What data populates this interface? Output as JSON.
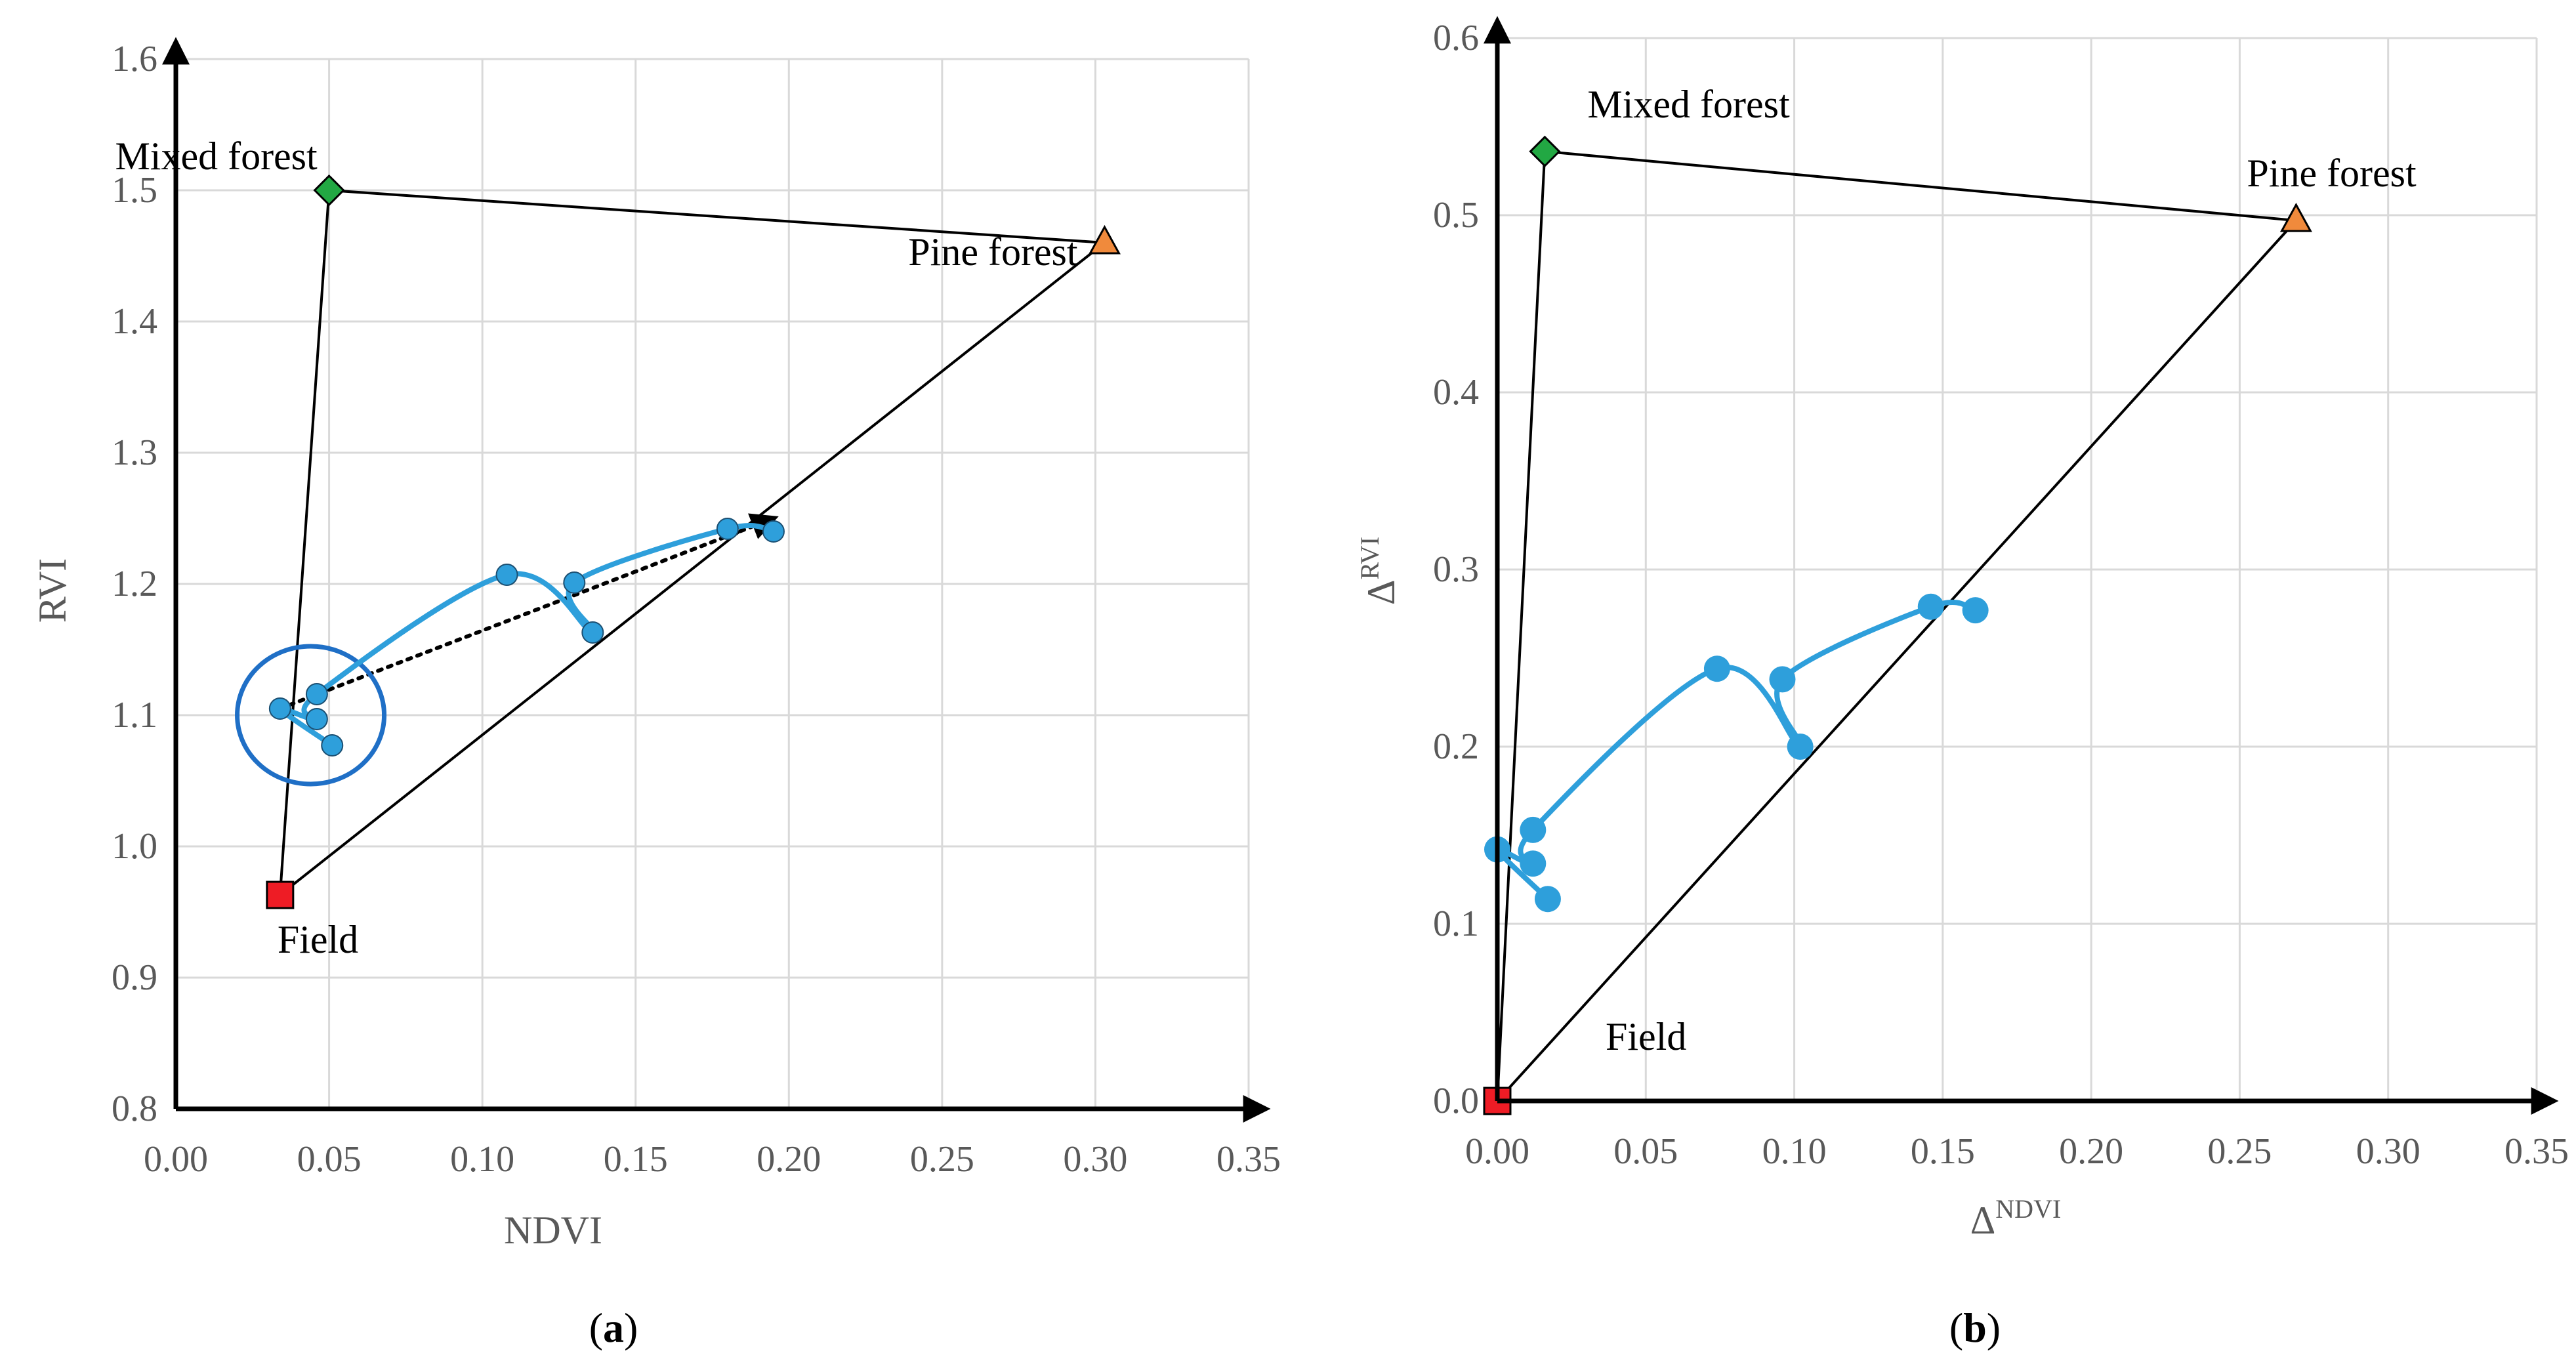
{
  "chart_data": [
    {
      "type": "scatter",
      "panel_label": "a",
      "xlabel": "NDVI",
      "ylabel": "RVI",
      "xlim": [
        0,
        0.35
      ],
      "ylim": [
        0.8,
        1.6
      ],
      "xticks": [
        "0.00",
        "0.05",
        "0.10",
        "0.15",
        "0.20",
        "0.25",
        "0.30",
        "0.35"
      ],
      "yticks": [
        "0.8",
        "0.9",
        "1.0",
        "1.1",
        "1.2",
        "1.3",
        "1.4",
        "1.5",
        "1.6"
      ],
      "grid": true,
      "endmembers": [
        {
          "label": "Mixed forest",
          "marker": "diamond",
          "color": "#22a843",
          "x": 0.05,
          "y": 1.5
        },
        {
          "label": "Pine forest",
          "marker": "triangle",
          "color": "#f08a3c",
          "x": 0.303,
          "y": 1.46
        },
        {
          "label": "Field",
          "marker": "square",
          "color": "#ee1c25",
          "x": 0.034,
          "y": 0.963
        }
      ],
      "series": [
        {
          "color": "#2e9fdb",
          "points": [
            {
              "x": 0.051,
              "y": 1.077
            },
            {
              "x": 0.034,
              "y": 1.105
            },
            {
              "x": 0.046,
              "y": 1.097
            },
            {
              "x": 0.046,
              "y": 1.116
            },
            {
              "x": 0.108,
              "y": 1.207
            },
            {
              "x": 0.136,
              "y": 1.163
            },
            {
              "x": 0.13,
              "y": 1.201
            },
            {
              "x": 0.18,
              "y": 1.242
            },
            {
              "x": 0.195,
              "y": 1.24
            }
          ]
        }
      ],
      "trend_arrow": {
        "from": {
          "x": 0.034,
          "y": 1.105
        },
        "to": {
          "x": 0.195,
          "y": 1.25
        }
      },
      "highlight_circle": {
        "x": 0.044,
        "y": 1.1,
        "color": "#1f6fc6"
      }
    },
    {
      "type": "scatter",
      "panel_label": "b",
      "xlabel": "Δ",
      "xlabel_sup": "NDVI",
      "ylabel": "Δ",
      "ylabel_sup": "RVI",
      "xlim": [
        0,
        0.35
      ],
      "ylim": [
        0,
        0.6
      ],
      "xticks": [
        "0.00",
        "0.05",
        "0.10",
        "0.15",
        "0.20",
        "0.25",
        "0.30",
        "0.35"
      ],
      "yticks": [
        "0.0",
        "0.1",
        "0.2",
        "0.3",
        "0.4",
        "0.5",
        "0.6"
      ],
      "grid": true,
      "endmembers": [
        {
          "label": "Mixed forest",
          "marker": "diamond",
          "color": "#22a843",
          "x": 0.016,
          "y": 0.536
        },
        {
          "label": "Pine forest",
          "marker": "triangle",
          "color": "#f08a3c",
          "x": 0.269,
          "y": 0.497
        },
        {
          "label": "Field",
          "marker": "square",
          "color": "#ee1c25",
          "x": 0.0,
          "y": 0.0
        }
      ],
      "series": [
        {
          "color": "#2e9fdb",
          "points": [
            {
              "x": 0.017,
              "y": 0.114
            },
            {
              "x": 0.0,
              "y": 0.142
            },
            {
              "x": 0.012,
              "y": 0.134
            },
            {
              "x": 0.012,
              "y": 0.153
            },
            {
              "x": 0.074,
              "y": 0.244
            },
            {
              "x": 0.102,
              "y": 0.2
            },
            {
              "x": 0.096,
              "y": 0.238
            },
            {
              "x": 0.146,
              "y": 0.279
            },
            {
              "x": 0.161,
              "y": 0.277
            }
          ]
        }
      ]
    }
  ]
}
